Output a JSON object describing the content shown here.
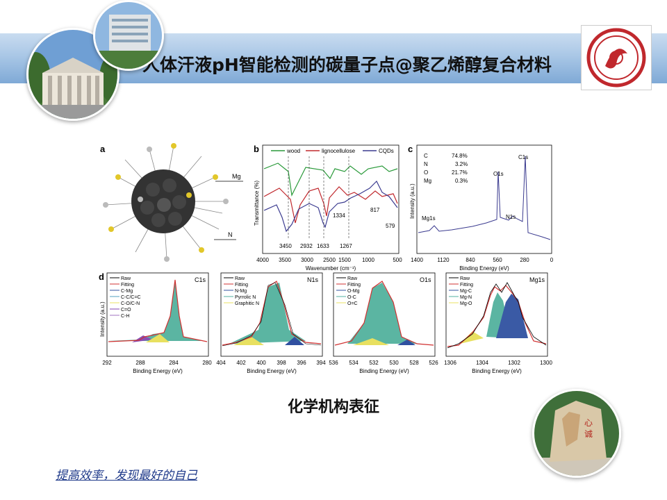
{
  "title": "人体汗液pH智能检测的碳量子点@聚乙烯醇复合材料",
  "caption": "化学机构表征",
  "motto": "提高效率，发现最好的自己",
  "colors": {
    "banner": "#8fb3dc",
    "logo": "#c0282d",
    "wood": "#2a9a3a",
    "lignocellulose": "#c0282d",
    "cqds": "#3a3a8f"
  },
  "panel_a": {
    "label": "a",
    "mg": "Mg",
    "n": "N"
  },
  "panel_b": {
    "label": "b",
    "legend": [
      "wood",
      "lignocellulose",
      "CQDs"
    ],
    "ylabel": "Transmittance (%)",
    "xlabel": "Wavenumber (cm⁻¹)",
    "ticks": [
      "4000",
      "3500",
      "3000",
      "2500",
      "1500",
      "1000",
      "500"
    ],
    "annotations": [
      "3450",
      "2932",
      "1633",
      "1267",
      "1334",
      "817",
      "579"
    ]
  },
  "panel_c": {
    "label": "c",
    "composition": [
      {
        "el": "C",
        "val": "74.8%"
      },
      {
        "el": "N",
        "val": "3.2%"
      },
      {
        "el": "O",
        "val": "21.7%"
      },
      {
        "el": "Mg",
        "val": "0.3%"
      }
    ],
    "peaks": [
      "C1s",
      "O1s",
      "N1s",
      "Mg1s"
    ],
    "ylabel": "Intensity (a.u.)",
    "xlabel": "Binding Energy (eV)",
    "ticks": [
      "1400",
      "1120",
      "840",
      "560",
      "280",
      "0"
    ]
  },
  "panel_d": {
    "label": "d",
    "ylabel": "Intensity (a.u.)",
    "xlabel": "Binding Energy (eV)",
    "subplots": [
      {
        "title": "C1s",
        "legend": [
          "Raw",
          "Fitting",
          "C-Mg",
          "C-C/C=C",
          "C-O/C-N",
          "C=O",
          "C-H"
        ],
        "ticks": [
          "292",
          "288",
          "284",
          "280"
        ],
        "extra_tick": "",
        "colors": [
          "#000000",
          "#d03030",
          "#3050a0",
          "#50a0c0",
          "#e8e060",
          "#8040b0",
          "#a070c0"
        ]
      },
      {
        "title": "N1s",
        "legend": [
          "Raw",
          "Fitting",
          "N-Mg",
          "Pyrrolic N",
          "Graphitic N"
        ],
        "ticks": [
          "404",
          "402",
          "400",
          "398",
          "396",
          "394"
        ],
        "extra_tick": "",
        "colors": [
          "#000000",
          "#d03030",
          "#3050a0",
          "#50b0a0",
          "#e8e060"
        ]
      },
      {
        "title": "O1s",
        "legend": [
          "Raw",
          "Fitting",
          "O-Mg",
          "O-C",
          "O=C"
        ],
        "ticks": [
          "536",
          "534",
          "532",
          "530",
          "528",
          "526"
        ],
        "extra_tick": "",
        "colors": [
          "#000000",
          "#d03030",
          "#3050a0",
          "#50b0a0",
          "#e8e060"
        ]
      },
      {
        "title": "Mg1s",
        "legend": [
          "Raw",
          "Fitting",
          "Mg-C",
          "Mg-N",
          "Mg-O"
        ],
        "ticks": [
          "1306",
          "1304",
          "1302",
          "1300"
        ],
        "extra_tick": "",
        "colors": [
          "#000000",
          "#d03030",
          "#3050a0",
          "#50b0a0",
          "#e8e060"
        ]
      }
    ]
  }
}
